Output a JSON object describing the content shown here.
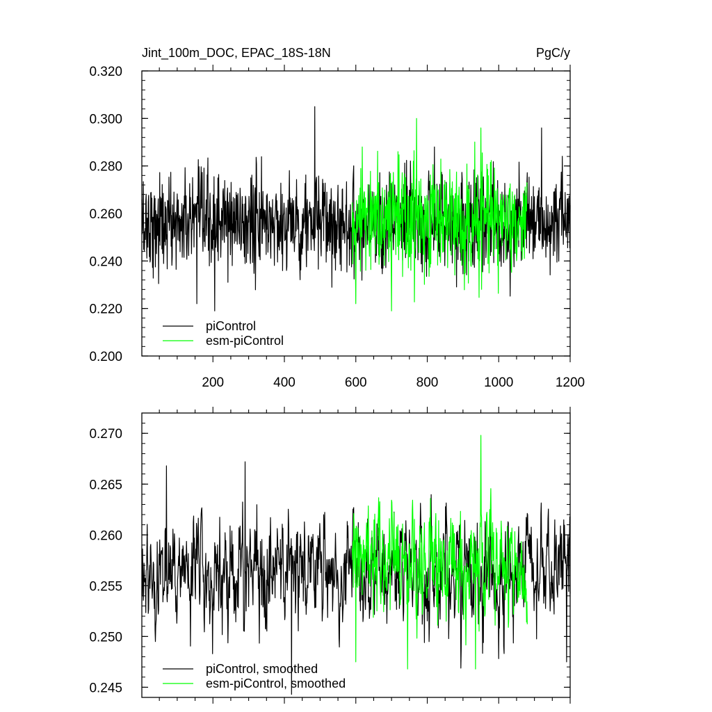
{
  "chart_data": [
    {
      "type": "line",
      "title": "Jint_100m_DOC, EPAC_18S-18N",
      "units": "PgC/y",
      "xlim": [
        1,
        1200
      ],
      "ylim": [
        0.2,
        0.32
      ],
      "xticks": [
        200,
        400,
        600,
        800,
        1000,
        1200
      ],
      "xtick_labels": [
        "200",
        "400",
        "600",
        "800",
        "1000",
        "1200"
      ],
      "yticks": [
        0.2,
        0.22,
        0.24,
        0.26,
        0.28,
        0.3,
        0.32
      ],
      "ytick_labels": [
        "0.200",
        "0.220",
        "0.240",
        "0.260",
        "0.280",
        "0.300",
        "0.320"
      ],
      "legend_position": "bottom-left",
      "series": [
        {
          "name": "piControl",
          "color": "#000000",
          "x_range": [
            1,
            1200
          ],
          "mean": 0.256,
          "typical_range": [
            0.235,
            0.28
          ],
          "min": 0.219,
          "max": 0.305,
          "notable_points": [
            [
              155,
              0.222
            ],
            [
              205,
              0.219
            ],
            [
              485,
              0.305
            ],
            [
              820,
              0.288
            ],
            [
              1120,
              0.296
            ]
          ]
        },
        {
          "name": "esm-piControl",
          "color": "#00ff00",
          "x_range": [
            590,
            1080
          ],
          "mean": 0.258,
          "typical_range": [
            0.235,
            0.285
          ],
          "min": 0.219,
          "max": 0.3,
          "notable_points": [
            [
              600,
              0.222
            ],
            [
              700,
              0.219
            ],
            [
              770,
              0.3
            ],
            [
              950,
              0.296
            ]
          ]
        }
      ]
    },
    {
      "type": "line",
      "xlim": [
        1,
        1200
      ],
      "ylim": [
        0.244,
        0.272
      ],
      "yticks": [
        0.245,
        0.25,
        0.255,
        0.26,
        0.265,
        0.27
      ],
      "ytick_labels": [
        "0.245",
        "0.250",
        "0.255",
        "0.260",
        "0.265",
        "0.270"
      ],
      "legend_position": "bottom-left",
      "series": [
        {
          "name": "piControl, smoothed",
          "color": "#000000",
          "x_range": [
            1,
            1200
          ],
          "mean": 0.2565,
          "typical_range": [
            0.249,
            0.264
          ],
          "min": 0.2443,
          "max": 0.2672,
          "notable_points": [
            [
              70,
              0.2668
            ],
            [
              290,
              0.2672
            ],
            [
              420,
              0.2443
            ],
            [
              1190,
              0.2475
            ]
          ]
        },
        {
          "name": "esm-piControl, smoothed",
          "color": "#00ff00",
          "x_range": [
            590,
            1080
          ],
          "mean": 0.2575,
          "typical_range": [
            0.25,
            0.266
          ],
          "min": 0.2468,
          "max": 0.2698,
          "notable_points": [
            [
              600,
              0.2475
            ],
            [
              745,
              0.2468
            ],
            [
              935,
              0.2468
            ],
            [
              950,
              0.2698
            ]
          ]
        }
      ]
    }
  ]
}
